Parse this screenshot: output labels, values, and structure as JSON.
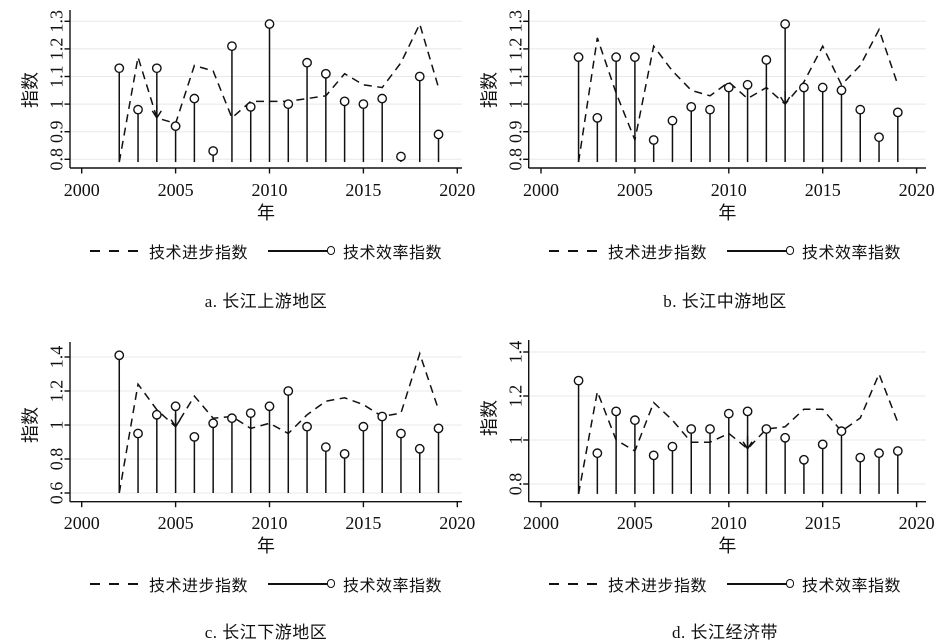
{
  "figure": {
    "legend": {
      "progress_label": "技术进步指数",
      "efficiency_label": "技术效率指数"
    },
    "colors": {
      "line": "#111111",
      "grid": "#e8e8e8",
      "marker_fill": "#ffffff",
      "background": "#ffffff"
    }
  },
  "chart_data": [
    {
      "id": "a",
      "type": "line",
      "title": "a. 长江上游地区",
      "xlabel": "年",
      "ylabel": "指数",
      "x": [
        2002,
        2003,
        2004,
        2005,
        2006,
        2007,
        2008,
        2009,
        2010,
        2011,
        2012,
        2013,
        2014,
        2015,
        2016,
        2017,
        2018,
        2019
      ],
      "xlim": [
        1999.4,
        2020.3
      ],
      "ylim": [
        0.79,
        1.34
      ],
      "xticks": {
        "values": [
          2000,
          2005,
          2010,
          2015,
          2020
        ],
        "labels": [
          "2000",
          "2005",
          "2010",
          "2015",
          "2020"
        ]
      },
      "yticks": {
        "values": [
          0.8,
          0.9,
          1.0,
          1.1,
          1.2,
          1.3
        ],
        "labels": [
          "0.8",
          "0.9",
          "1",
          "1.1",
          "1.2",
          "1.3"
        ]
      },
      "grid": "horizontal",
      "legend_position": "bottom",
      "arrow_marker_year": 2004,
      "series": [
        {
          "name": "技术进步指数",
          "style": "dashed",
          "values": [
            0.79,
            1.17,
            0.95,
            0.93,
            1.14,
            1.12,
            0.95,
            1.01,
            1.01,
            1.01,
            1.02,
            1.03,
            1.11,
            1.07,
            1.06,
            1.15,
            1.29,
            1.06
          ]
        },
        {
          "name": "技术效率指数",
          "style": "stem-circle",
          "values": [
            1.13,
            0.98,
            1.13,
            0.92,
            1.02,
            0.83,
            1.21,
            0.99,
            1.29,
            1.0,
            1.15,
            1.11,
            1.01,
            1.0,
            1.02,
            0.81,
            1.1,
            0.89
          ]
        }
      ]
    },
    {
      "id": "b",
      "type": "line",
      "title": "b. 长江中游地区",
      "xlabel": "年",
      "ylabel": "指数",
      "x": [
        2002,
        2003,
        2004,
        2005,
        2006,
        2007,
        2008,
        2009,
        2010,
        2011,
        2012,
        2013,
        2014,
        2015,
        2016,
        2017,
        2018,
        2019
      ],
      "xlim": [
        1999.4,
        2020.3
      ],
      "ylim": [
        0.79,
        1.34
      ],
      "xticks": {
        "values": [
          2000,
          2005,
          2010,
          2015,
          2020
        ],
        "labels": [
          "2000",
          "2005",
          "2010",
          "2015",
          "2020"
        ]
      },
      "yticks": {
        "values": [
          0.8,
          0.9,
          1.0,
          1.1,
          1.2,
          1.3
        ],
        "labels": [
          "0.8",
          "0.9",
          "1",
          "1.1",
          "1.2",
          "1.3"
        ]
      },
      "grid": "horizontal",
      "legend_position": "bottom",
      "arrow_marker_year": 2013,
      "series": [
        {
          "name": "技术进步指数",
          "style": "dashed",
          "values": [
            0.79,
            1.24,
            1.04,
            0.87,
            1.21,
            1.12,
            1.05,
            1.03,
            1.08,
            1.02,
            1.06,
            1.0,
            1.08,
            1.21,
            1.07,
            1.14,
            1.27,
            1.07
          ]
        },
        {
          "name": "技术效率指数",
          "style": "stem-circle",
          "values": [
            1.17,
            0.95,
            1.17,
            1.17,
            0.87,
            0.94,
            0.99,
            0.98,
            1.06,
            1.07,
            1.16,
            1.29,
            1.06,
            1.06,
            1.05,
            0.98,
            0.88,
            0.97
          ]
        }
      ]
    },
    {
      "id": "c",
      "type": "line",
      "title": "c. 长江下游地区",
      "xlabel": "年",
      "ylabel": "指数",
      "x": [
        2002,
        2003,
        2004,
        2005,
        2006,
        2007,
        2008,
        2009,
        2010,
        2011,
        2012,
        2013,
        2014,
        2015,
        2016,
        2017,
        2018,
        2019
      ],
      "xlim": [
        1999.4,
        2020.3
      ],
      "ylim": [
        0.6,
        1.47
      ],
      "xticks": {
        "values": [
          2000,
          2005,
          2010,
          2015,
          2020
        ],
        "labels": [
          "2000",
          "2005",
          "2010",
          "2015",
          "2020"
        ]
      },
      "yticks": {
        "values": [
          0.6,
          0.8,
          1.0,
          1.2,
          1.4
        ],
        "labels": [
          "0.6",
          "0.8",
          "1",
          "1.2",
          "1.4"
        ]
      },
      "grid": "horizontal",
      "legend_position": "bottom",
      "arrow_marker_year": 2005,
      "series": [
        {
          "name": "技术进步指数",
          "style": "dashed",
          "values": [
            0.6,
            1.24,
            1.09,
            0.99,
            1.17,
            1.04,
            1.05,
            0.98,
            1.01,
            0.95,
            1.06,
            1.14,
            1.16,
            1.12,
            1.05,
            1.07,
            1.42,
            1.09
          ]
        },
        {
          "name": "技术效率指数",
          "style": "stem-circle",
          "values": [
            1.41,
            0.95,
            1.06,
            1.11,
            0.93,
            1.01,
            1.04,
            1.07,
            1.11,
            1.2,
            0.99,
            0.87,
            0.83,
            0.99,
            1.05,
            0.95,
            0.86,
            0.98
          ]
        }
      ]
    },
    {
      "id": "d",
      "type": "line",
      "title": "d. 长江经济带",
      "xlabel": "年",
      "ylabel": "指数",
      "x": [
        2002,
        2003,
        2004,
        2005,
        2006,
        2007,
        2008,
        2009,
        2010,
        2011,
        2012,
        2013,
        2014,
        2015,
        2016,
        2017,
        2018,
        2019
      ],
      "xlim": [
        1999.4,
        2020.3
      ],
      "ylim": [
        0.755,
        1.42
      ],
      "xticks": {
        "values": [
          2000,
          2005,
          2010,
          2015,
          2020
        ],
        "labels": [
          "2000",
          "2005",
          "2010",
          "2015",
          "2020"
        ]
      },
      "yticks": {
        "values": [
          0.8,
          1.0,
          1.2,
          1.4
        ],
        "labels": [
          "0.8",
          "1",
          "1.2",
          "1.4"
        ]
      },
      "grid": "horizontal",
      "legend_position": "bottom",
      "arrow_marker_year": 2011,
      "series": [
        {
          "name": "技术进步指数",
          "style": "dashed",
          "values": [
            0.755,
            1.22,
            1.0,
            0.95,
            1.17,
            1.09,
            0.99,
            0.99,
            1.03,
            0.96,
            1.05,
            1.06,
            1.14,
            1.14,
            1.04,
            1.1,
            1.3,
            1.08
          ]
        },
        {
          "name": "技术效率指数",
          "style": "stem-circle",
          "values": [
            1.27,
            0.94,
            1.13,
            1.09,
            0.93,
            0.97,
            1.05,
            1.05,
            1.12,
            1.13,
            1.05,
            1.01,
            0.91,
            0.98,
            1.04,
            0.92,
            0.94,
            0.95
          ]
        }
      ]
    }
  ]
}
